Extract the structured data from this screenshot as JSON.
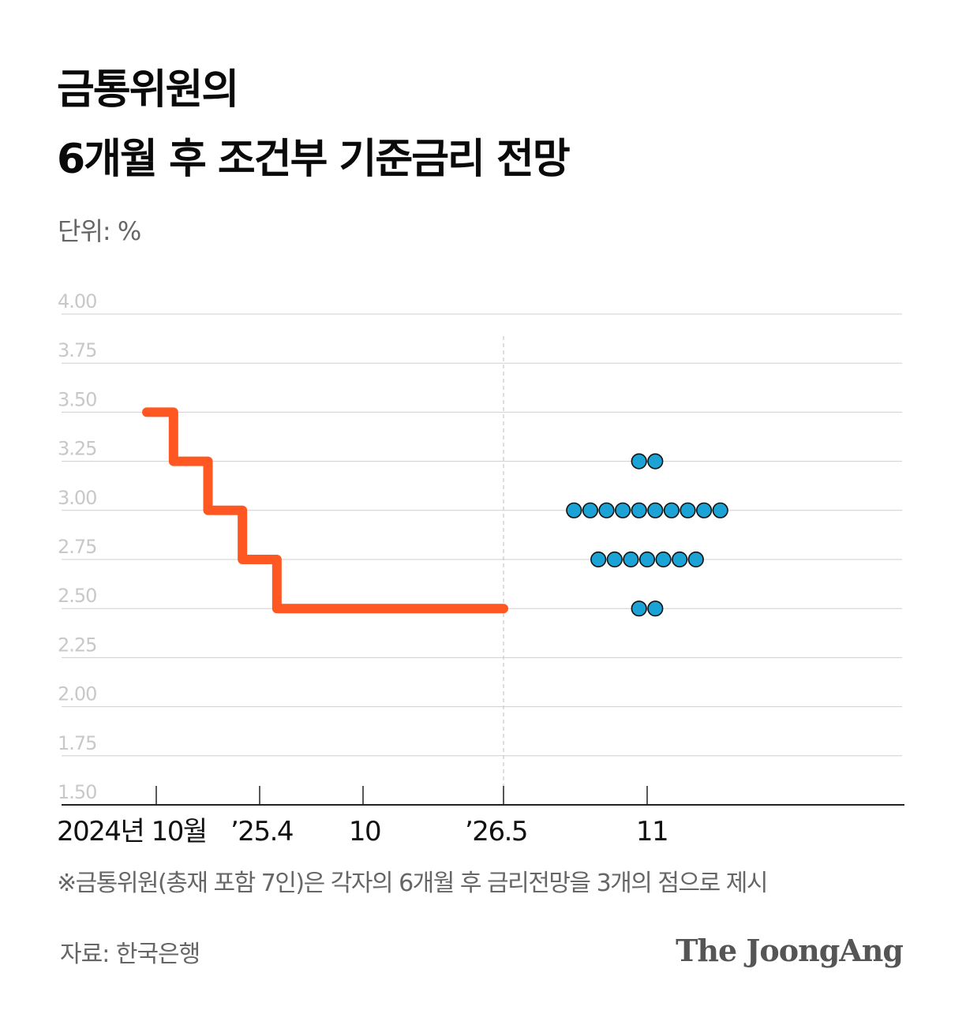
{
  "header": {
    "title_line1": "금통위원의",
    "title_line2": "6개월 후 조건부 기준금리 전망",
    "unit": "단위: %"
  },
  "footer": {
    "note": "※금통위원(총재 포함 7인)은 각자의 6개월 후 금리전망을 3개의 점으로 제시",
    "source": "자료: 한국은행",
    "logo": "The JoongAng"
  },
  "colors": {
    "line": "#FF5722",
    "dot": "#1BA3D6",
    "dot_stroke": "#111111",
    "grid": "#cfcfcf",
    "tick_label": "#c8c8c8",
    "axis": "#222222"
  },
  "chart_data": {
    "type": "line",
    "ylim": [
      1.5,
      4.0
    ],
    "yticks": [
      "4.00",
      "3.75",
      "3.50",
      "3.25",
      "3.00",
      "2.75",
      "2.50",
      "2.25",
      "2.00",
      "1.75",
      "1.50"
    ],
    "x_labels": [
      "2024년 10월",
      "’25.4",
      "10",
      "’26.5",
      "11"
    ],
    "series": [
      {
        "kind": "step",
        "points": [
          {
            "x": "2024-10",
            "y": 3.5
          },
          {
            "x": "2024-11",
            "y": 3.25
          },
          {
            "x": "2025-01",
            "y": 3.0
          },
          {
            "x": "2025-03",
            "y": 2.75
          },
          {
            "x": "2025-05",
            "y": 2.5
          },
          {
            "x": "2026-05",
            "y": 2.5
          }
        ]
      },
      {
        "kind": "dots",
        "x": "2026-11",
        "groups": [
          {
            "y": 3.25,
            "count": 2
          },
          {
            "y": 3.0,
            "count": 10
          },
          {
            "y": 2.75,
            "count": 7
          },
          {
            "y": 2.5,
            "count": 2
          }
        ]
      }
    ]
  }
}
